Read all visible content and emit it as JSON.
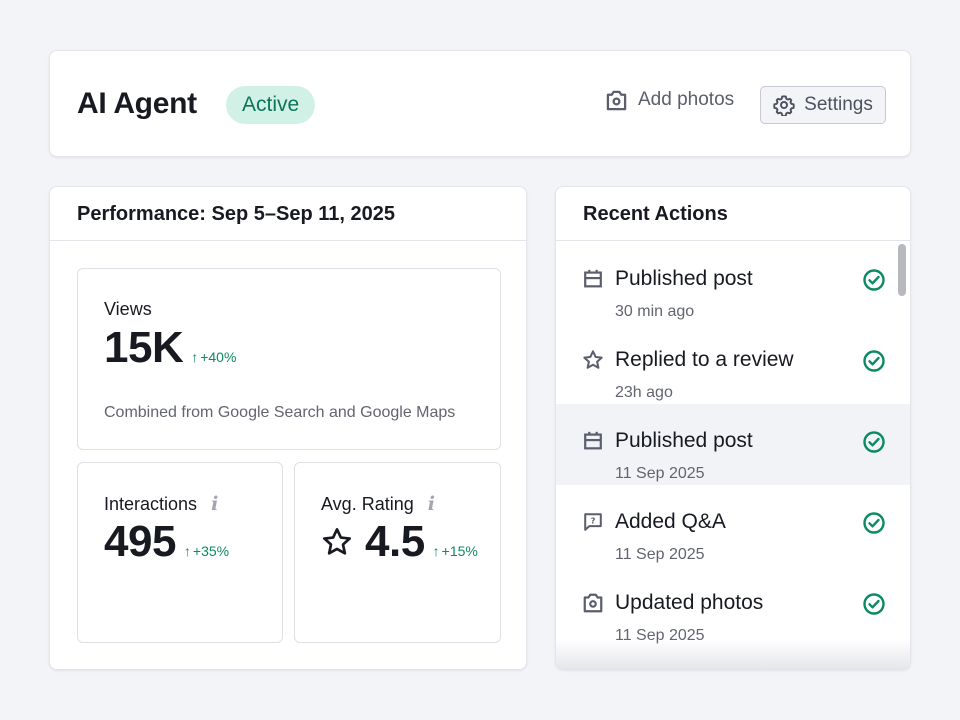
{
  "header": {
    "title": "AI Agent",
    "status": "Active",
    "add_photos_label": "Add photos",
    "settings_label": "Settings"
  },
  "performance": {
    "title": "Performance: Sep 5–Sep 11, 2025",
    "views": {
      "label": "Views",
      "value": "15K",
      "delta": "+40%",
      "note": "Combined from Google Search and Google Maps"
    },
    "interactions": {
      "label": "Interactions",
      "info_icon": "i",
      "value": "495",
      "delta": "+35%"
    },
    "rating": {
      "label": "Avg. Rating",
      "info_icon": "i",
      "value": "4.5",
      "delta": "+15%"
    }
  },
  "recent_actions": {
    "title": "Recent Actions",
    "items": [
      {
        "icon": "calendar-icon",
        "title": "Published post",
        "time": "30 min ago",
        "status": "done"
      },
      {
        "icon": "star-icon",
        "title": "Replied to a review",
        "time": "23h ago",
        "status": "done"
      },
      {
        "icon": "calendar-icon",
        "title": "Published post",
        "time": "11 Sep 2025",
        "status": "done"
      },
      {
        "icon": "question-bubble-icon",
        "title": "Added Q&A",
        "time": "11 Sep 2025",
        "status": "done"
      },
      {
        "icon": "camera-icon",
        "title": "Updated photos",
        "time": "11 Sep 2025",
        "status": "done"
      }
    ]
  },
  "colors": {
    "accent_green": "#0c8a63",
    "badge_bg": "#d1f1e7",
    "badge_text": "#0c7559",
    "page_bg": "#f3f4f8"
  }
}
